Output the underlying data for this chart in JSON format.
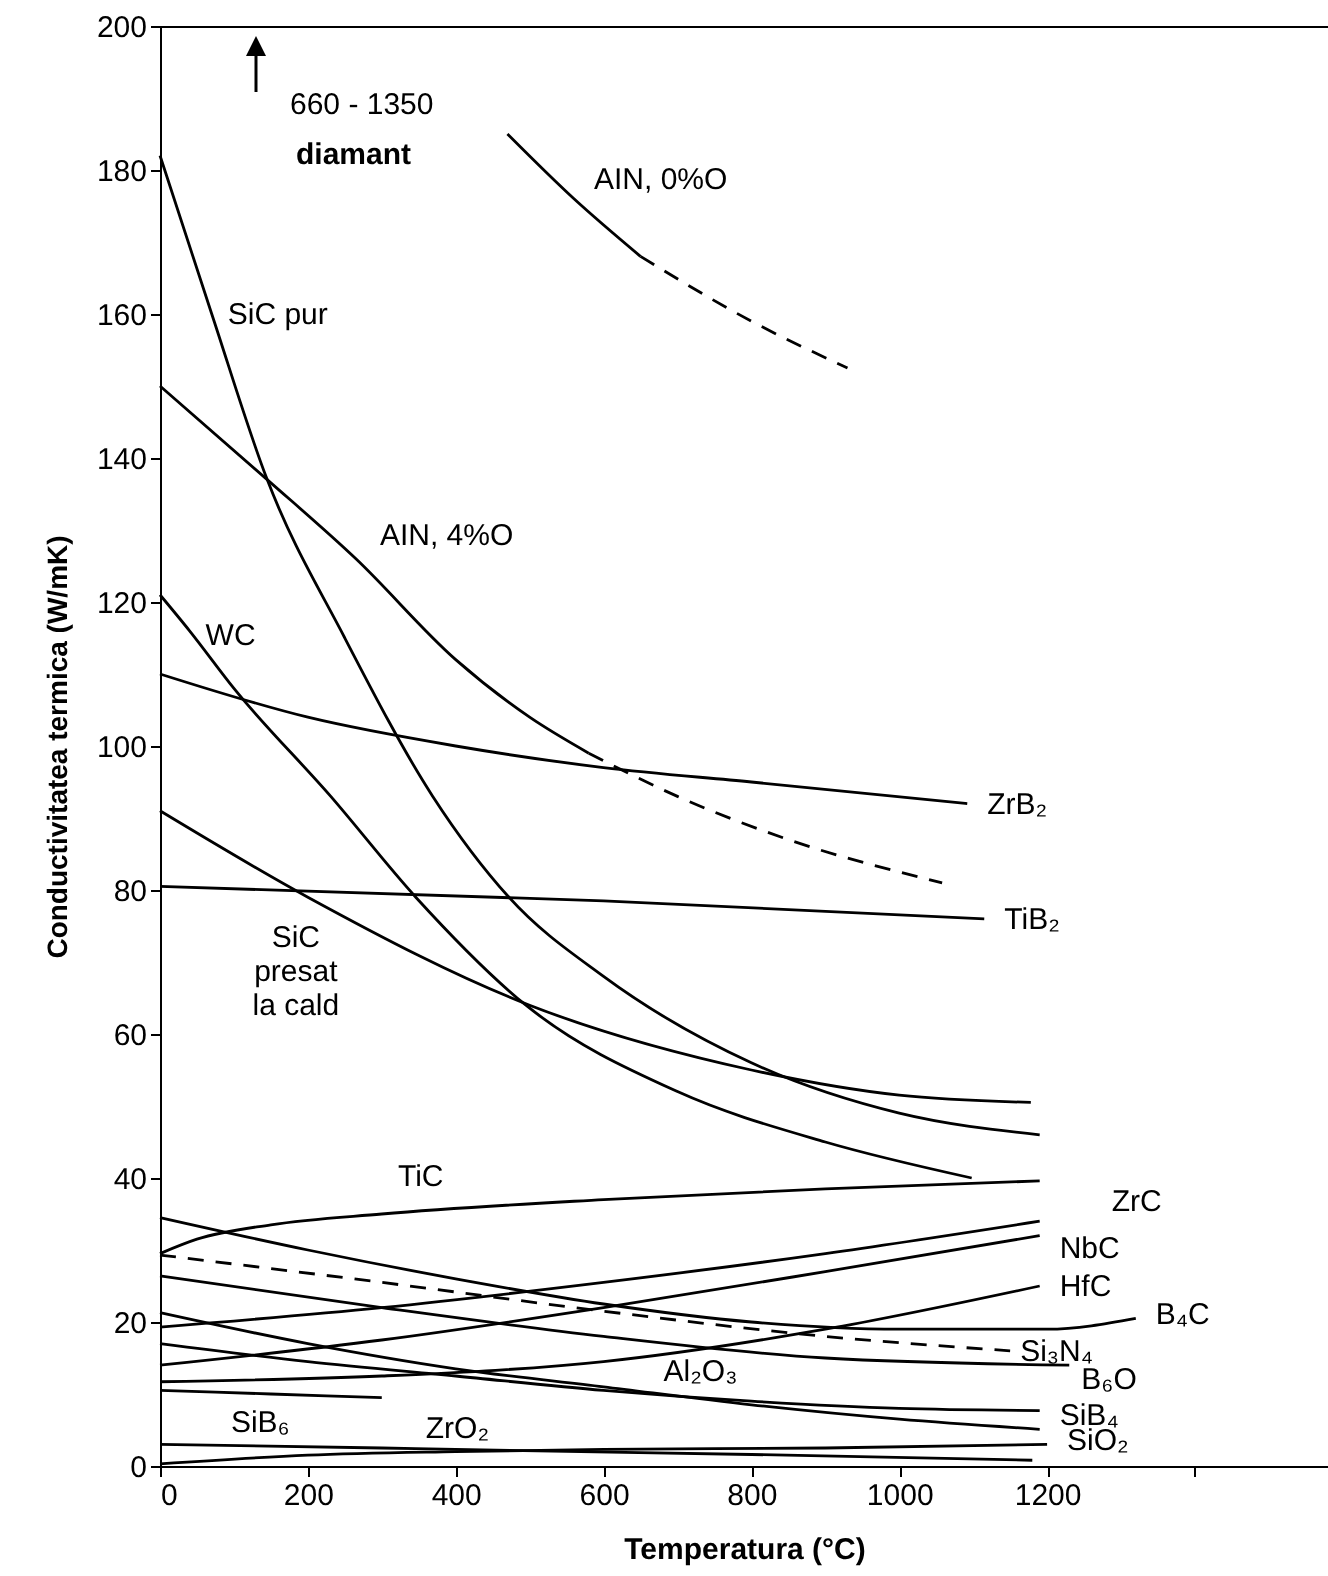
{
  "chart_data": {
    "type": "line",
    "xlabel": "Temperatura (°C)",
    "ylabel": "Conductivitatea termica (W/mK)",
    "xlim": [
      0,
      1580
    ],
    "xticks": [
      0,
      200,
      400,
      600,
      800,
      1000,
      1200,
      {
        "value": 1400,
        "label": null
      }
    ],
    "ylim": [
      0,
      200
    ],
    "yticks": [
      0,
      20,
      40,
      60,
      80,
      100,
      120,
      140,
      160,
      180,
      200
    ],
    "grid": false,
    "annotations": [
      "660 - 1350",
      "diamant"
    ],
    "series": [
      {
        "name": "AIN, 0%O",
        "color": "#000000",
        "x": [
          470,
          560,
          650
        ],
        "values": [
          185,
          176,
          168
        ]
      },
      {
        "color": "#000000",
        "line_style": "dashed",
        "x": [
          650,
          800,
          930
        ],
        "values": [
          168,
          159,
          152.5
        ]
      },
      {
        "name": "SiC pur",
        "color": "#000000",
        "x": [
          0,
          70,
          145,
          250,
          369,
          472,
          600,
          800,
          1000,
          1190
        ],
        "values": [
          182,
          160,
          137,
          115,
          93,
          79,
          68,
          56,
          49,
          46
        ]
      },
      {
        "name": "AIN, 4%O",
        "color": "#000000",
        "x": [
          0,
          145,
          265,
          400,
          500,
          580
        ],
        "values": [
          150,
          137,
          126,
          112,
          104,
          99
        ]
      },
      {
        "color": "#000000",
        "line_style": "dashed",
        "x": [
          580,
          700,
          850,
          1058
        ],
        "values": [
          99,
          93,
          87,
          81
        ]
      },
      {
        "name": "WC",
        "color": "#000000",
        "x": [
          0,
          40,
          100,
          231,
          346,
          495,
          700,
          900,
          1098
        ],
        "values": [
          121,
          116,
          108,
          93,
          79,
          64,
          52,
          45,
          40
        ]
      },
      {
        "name": "ZrB₂",
        "color": "#000000",
        "x": [
          0,
          200,
          400,
          600,
          800,
          1092
        ],
        "values": [
          110,
          104,
          100,
          97,
          95,
          92
        ]
      },
      {
        "name": "TiB₂",
        "color": "#000000",
        "x": [
          0,
          600,
          1115
        ],
        "values": [
          80.5,
          78.5,
          76
        ]
      },
      {
        "name": "SiC\npresat\nla cald",
        "color": "#000000",
        "x": [
          0,
          200,
          500,
          800,
          1000,
          1178
        ],
        "values": [
          91,
          79,
          64,
          55,
          51.5,
          50.5
        ]
      },
      {
        "name": "TiC",
        "color": "#000000",
        "x": [
          0,
          50,
          150,
          300,
          600,
          900,
          1190
        ],
        "values": [
          29.5,
          31.5,
          33.5,
          35,
          37,
          38.5,
          39.6
        ]
      },
      {
        "name": "ZrC",
        "color": "#000000",
        "x": [
          0,
          300,
          600,
          900,
          1190
        ],
        "values": [
          19.3,
          22,
          25.5,
          29.5,
          34
        ]
      },
      {
        "name": "NbC",
        "color": "#000000",
        "x": [
          0,
          300,
          600,
          900,
          1190
        ],
        "values": [
          14,
          17.5,
          22,
          27,
          32
        ]
      },
      {
        "name": "HfC",
        "color": "#000000",
        "x": [
          0,
          300,
          600,
          900,
          1190
        ],
        "values": [
          11.7,
          12.5,
          14.5,
          19,
          25
        ]
      },
      {
        "name": "B₄C",
        "color": "#000000",
        "x": [
          0,
          200,
          400,
          600,
          800,
          1000,
          1200,
          1320
        ],
        "values": [
          34.5,
          30,
          26,
          22.5,
          20,
          19,
          19,
          20.5
        ]
      },
      {
        "name": "Si₃N₄",
        "color": "#000000",
        "line_style": "dashed",
        "x": [
          0,
          300,
          600,
          900,
          1150
        ],
        "values": [
          29.3,
          25.5,
          21.5,
          18,
          16
        ]
      },
      {
        "name": "B₆O",
        "color": "#000000",
        "x": [
          0,
          300,
          600,
          900,
          1230
        ],
        "values": [
          26.4,
          22,
          18,
          15,
          14
        ]
      },
      {
        "name": "Al₂O₃",
        "color": "#000000",
        "x": [
          0,
          200,
          400,
          600,
          800,
          1000,
          1190
        ],
        "values": [
          21.3,
          17,
          13.5,
          11,
          8.5,
          6.5,
          5.1
        ]
      },
      {
        "name": "SiB₄",
        "color": "#000000",
        "x": [
          0,
          200,
          400,
          600,
          800,
          1000,
          1190
        ],
        "values": [
          17,
          14.5,
          12.5,
          10.5,
          9,
          8,
          7.7
        ]
      },
      {
        "name": "SiB₆",
        "color": "#000000",
        "x": [
          0,
          150,
          300
        ],
        "values": [
          10.5,
          10,
          9.5
        ]
      },
      {
        "name": "ZrO₂",
        "color": "#000000",
        "x": [
          0,
          300,
          400,
          800,
          1180
        ],
        "values": [
          3,
          2.5,
          2.3,
          1.6,
          0.8
        ]
      },
      {
        "name": "SiO₂",
        "color": "#000000",
        "x": [
          0,
          200,
          400,
          600,
          900,
          1200
        ],
        "values": [
          0.3,
          1.5,
          2,
          2.3,
          2.5,
          3
        ]
      }
    ]
  }
}
